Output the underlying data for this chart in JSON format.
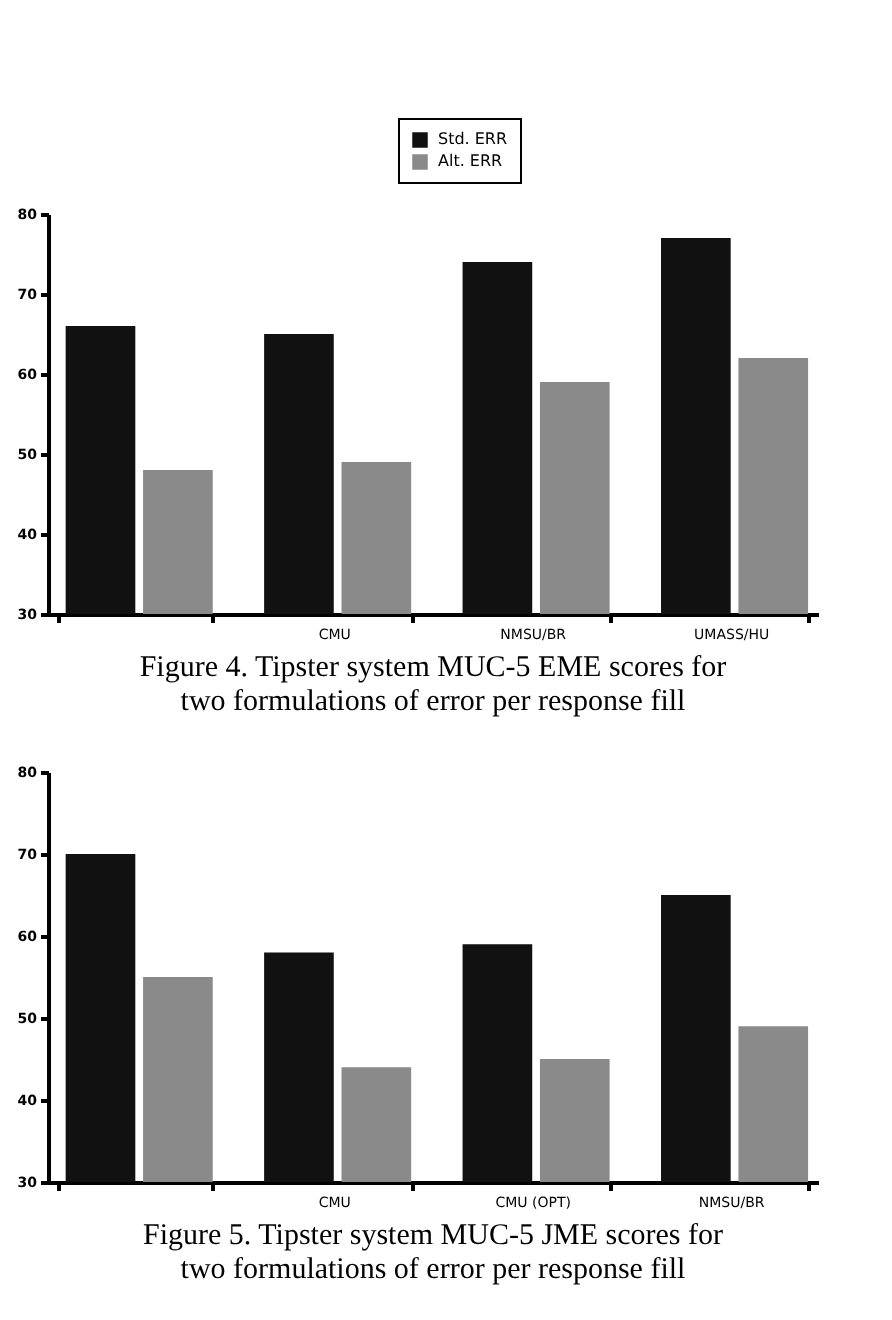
{
  "chart_data": [
    {
      "type": "bar",
      "categories": [
        null,
        "CMU",
        "NMSU/BR",
        "UMASS/HU"
      ],
      "series": [
        {
          "name": "Std. ERR",
          "color": "#111111",
          "values": [
            66,
            65,
            74,
            77
          ]
        },
        {
          "name": "Alt. ERR",
          "color": "#8a8a8a",
          "values": [
            48,
            49,
            59,
            62
          ]
        }
      ],
      "ylim": [
        30,
        80
      ],
      "yticks": [
        30,
        40,
        50,
        60,
        70,
        80
      ],
      "grid": false,
      "legend": "top",
      "annotations": [
        "Figure 4.  Tipster system MUC-5 EME scores for two formulations of error per response fill"
      ]
    },
    {
      "type": "bar",
      "categories": [
        null,
        "CMU",
        "CMU (OPT)",
        "NMSU/BR"
      ],
      "series": [
        {
          "color": "#111111",
          "values": [
            70,
            58,
            59,
            65
          ]
        },
        {
          "color": "#8a8a8a",
          "values": [
            55,
            44,
            45,
            49
          ]
        }
      ],
      "ylim": [
        30,
        80
      ],
      "yticks": [
        30,
        40,
        50,
        60,
        70,
        80
      ],
      "grid": false,
      "annotations": [
        "Figure 5.  Tipster system MUC-5 JME scores for two formulations of error per response fill"
      ]
    }
  ]
}
